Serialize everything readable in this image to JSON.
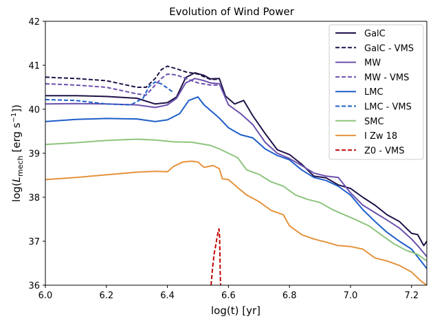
{
  "chart_data": {
    "type": "line",
    "title": "Evolution of Wind Power",
    "xlabel": "log(t) [yr]",
    "ylabel": "log(L_mech [erg s^-1])",
    "ylabel_main": "log(",
    "ylabel_sym": "L",
    "ylabel_sub": "mech",
    "ylabel_unit": " [erg s",
    "ylabel_exp": "−1",
    "ylabel_close": "])",
    "xlim": [
      6.0,
      7.25
    ],
    "ylim": [
      36,
      42
    ],
    "xticks": [
      "6.0",
      "6.2",
      "6.4",
      "6.6",
      "6.8",
      "7.0",
      "7.2"
    ],
    "yticks": [
      "36",
      "37",
      "38",
      "39",
      "40",
      "41",
      "42"
    ],
    "grid": false,
    "legend_position": "top-right",
    "series": [
      {
        "name": "GalC",
        "color": "#1f1147",
        "dash": "solid",
        "points": [
          [
            6.0,
            40.31
          ],
          [
            6.1,
            40.31
          ],
          [
            6.2,
            40.29
          ],
          [
            6.3,
            40.25
          ],
          [
            6.36,
            40.12
          ],
          [
            6.4,
            40.15
          ],
          [
            6.43,
            40.28
          ],
          [
            6.46,
            40.72
          ],
          [
            6.49,
            40.83
          ],
          [
            6.52,
            40.77
          ],
          [
            6.54,
            40.69
          ],
          [
            6.57,
            40.7
          ],
          [
            6.59,
            40.3
          ],
          [
            6.62,
            40.12
          ],
          [
            6.65,
            40.2
          ],
          [
            6.68,
            39.85
          ],
          [
            6.72,
            39.45
          ],
          [
            6.76,
            39.08
          ],
          [
            6.8,
            38.97
          ],
          [
            6.84,
            38.75
          ],
          [
            6.88,
            38.48
          ],
          [
            6.92,
            38.44
          ],
          [
            6.96,
            38.28
          ],
          [
            7.0,
            38.2
          ],
          [
            7.04,
            38.0
          ],
          [
            7.08,
            37.82
          ],
          [
            7.12,
            37.6
          ],
          [
            7.16,
            37.45
          ],
          [
            7.2,
            37.18
          ],
          [
            7.22,
            37.15
          ],
          [
            7.24,
            36.9
          ],
          [
            7.25,
            37.0
          ]
        ]
      },
      {
        "name": "GalC - VMS",
        "color": "#1f1147",
        "dash": "dashed",
        "points": [
          [
            6.0,
            40.73
          ],
          [
            6.1,
            40.7
          ],
          [
            6.2,
            40.65
          ],
          [
            6.3,
            40.5
          ],
          [
            6.33,
            40.5
          ],
          [
            6.36,
            40.7
          ],
          [
            6.38,
            40.9
          ],
          [
            6.4,
            40.98
          ],
          [
            6.43,
            40.92
          ],
          [
            6.46,
            40.85
          ],
          [
            6.5,
            40.8
          ],
          [
            6.54,
            40.68
          ],
          [
            6.57,
            40.68
          ]
        ]
      },
      {
        "name": "MW",
        "color": "#6b4fae",
        "dash": "solid",
        "points": [
          [
            6.0,
            40.12
          ],
          [
            6.1,
            40.13
          ],
          [
            6.2,
            40.12
          ],
          [
            6.3,
            40.1
          ],
          [
            6.36,
            40.04
          ],
          [
            6.4,
            40.1
          ],
          [
            6.43,
            40.25
          ],
          [
            6.46,
            40.6
          ],
          [
            6.49,
            40.7
          ],
          [
            6.52,
            40.65
          ],
          [
            6.54,
            40.6
          ],
          [
            6.57,
            40.58
          ],
          [
            6.6,
            40.1
          ],
          [
            6.64,
            39.9
          ],
          [
            6.68,
            39.65
          ],
          [
            6.72,
            39.25
          ],
          [
            6.76,
            39.0
          ],
          [
            6.8,
            38.88
          ],
          [
            6.84,
            38.72
          ],
          [
            6.88,
            38.55
          ],
          [
            6.92,
            38.48
          ],
          [
            6.96,
            38.45
          ],
          [
            7.0,
            38.1
          ],
          [
            7.04,
            37.82
          ],
          [
            7.08,
            37.65
          ],
          [
            7.12,
            37.48
          ],
          [
            7.16,
            37.3
          ],
          [
            7.2,
            37.05
          ],
          [
            7.22,
            36.9
          ],
          [
            7.25,
            36.65
          ]
        ]
      },
      {
        "name": "MW - VMS",
        "color": "#6b4fae",
        "dash": "dashed",
        "points": [
          [
            6.0,
            40.58
          ],
          [
            6.1,
            40.55
          ],
          [
            6.2,
            40.5
          ],
          [
            6.3,
            40.35
          ],
          [
            6.33,
            40.32
          ],
          [
            6.36,
            40.55
          ],
          [
            6.38,
            40.7
          ],
          [
            6.4,
            40.8
          ],
          [
            6.43,
            40.78
          ],
          [
            6.46,
            40.7
          ],
          [
            6.5,
            40.6
          ],
          [
            6.54,
            40.55
          ],
          [
            6.57,
            40.55
          ]
        ]
      },
      {
        "name": "LMC",
        "color": "#1c5dc9",
        "dash": "solid",
        "points": [
          [
            6.0,
            39.72
          ],
          [
            6.1,
            39.77
          ],
          [
            6.2,
            39.79
          ],
          [
            6.3,
            39.78
          ],
          [
            6.36,
            39.72
          ],
          [
            6.4,
            39.76
          ],
          [
            6.44,
            39.9
          ],
          [
            6.47,
            40.2
          ],
          [
            6.5,
            40.28
          ],
          [
            6.52,
            40.1
          ],
          [
            6.55,
            39.92
          ],
          [
            6.57,
            39.8
          ],
          [
            6.6,
            39.58
          ],
          [
            6.64,
            39.42
          ],
          [
            6.68,
            39.35
          ],
          [
            6.72,
            39.1
          ],
          [
            6.76,
            38.95
          ],
          [
            6.8,
            38.85
          ],
          [
            6.84,
            38.62
          ],
          [
            6.88,
            38.45
          ],
          [
            6.92,
            38.38
          ],
          [
            6.96,
            38.25
          ],
          [
            7.0,
            38.05
          ],
          [
            7.04,
            37.72
          ],
          [
            7.08,
            37.45
          ],
          [
            7.12,
            37.2
          ],
          [
            7.16,
            37.0
          ],
          [
            7.2,
            36.82
          ],
          [
            7.25,
            36.38
          ]
        ]
      },
      {
        "name": "LMC - VMS",
        "color": "#1c5dc9",
        "dash": "dashed",
        "points": [
          [
            6.0,
            40.22
          ],
          [
            6.1,
            40.2
          ],
          [
            6.2,
            40.12
          ],
          [
            6.28,
            40.1
          ],
          [
            6.32,
            40.25
          ],
          [
            6.34,
            40.52
          ],
          [
            6.36,
            40.62
          ],
          [
            6.38,
            40.58
          ],
          [
            6.4,
            40.48
          ],
          [
            6.42,
            40.38
          ]
        ]
      },
      {
        "name": "SMC",
        "color": "#8cc47c",
        "dash": "solid",
        "points": [
          [
            6.0,
            39.2
          ],
          [
            6.1,
            39.24
          ],
          [
            6.2,
            39.29
          ],
          [
            6.3,
            39.32
          ],
          [
            6.36,
            39.3
          ],
          [
            6.42,
            39.26
          ],
          [
            6.48,
            39.25
          ],
          [
            6.54,
            39.18
          ],
          [
            6.57,
            39.1
          ],
          [
            6.6,
            39.0
          ],
          [
            6.63,
            38.9
          ],
          [
            6.66,
            38.62
          ],
          [
            6.7,
            38.52
          ],
          [
            6.74,
            38.35
          ],
          [
            6.78,
            38.25
          ],
          [
            6.82,
            38.05
          ],
          [
            6.86,
            37.95
          ],
          [
            6.9,
            37.88
          ],
          [
            6.94,
            37.72
          ],
          [
            6.98,
            37.6
          ],
          [
            7.02,
            37.48
          ],
          [
            7.06,
            37.35
          ],
          [
            7.1,
            37.15
          ],
          [
            7.14,
            36.95
          ],
          [
            7.18,
            36.8
          ],
          [
            7.22,
            36.7
          ],
          [
            7.25,
            36.55
          ]
        ]
      },
      {
        "name": "I Zw 18",
        "color": "#e5923a",
        "dash": "solid",
        "points": [
          [
            6.0,
            38.4
          ],
          [
            6.1,
            38.45
          ],
          [
            6.2,
            38.51
          ],
          [
            6.3,
            38.57
          ],
          [
            6.36,
            38.59
          ],
          [
            6.4,
            38.58
          ],
          [
            6.42,
            38.7
          ],
          [
            6.45,
            38.8
          ],
          [
            6.48,
            38.82
          ],
          [
            6.5,
            38.8
          ],
          [
            6.52,
            38.68
          ],
          [
            6.55,
            38.72
          ],
          [
            6.57,
            38.65
          ],
          [
            6.58,
            38.42
          ],
          [
            6.6,
            38.4
          ],
          [
            6.63,
            38.22
          ],
          [
            6.66,
            38.05
          ],
          [
            6.7,
            37.9
          ],
          [
            6.74,
            37.7
          ],
          [
            6.78,
            37.6
          ],
          [
            6.8,
            37.35
          ],
          [
            6.84,
            37.15
          ],
          [
            6.88,
            37.05
          ],
          [
            6.92,
            36.98
          ],
          [
            6.96,
            36.9
          ],
          [
            7.0,
            36.88
          ],
          [
            7.04,
            36.82
          ],
          [
            7.08,
            36.62
          ],
          [
            7.12,
            36.55
          ],
          [
            7.16,
            36.45
          ],
          [
            7.2,
            36.3
          ],
          [
            7.23,
            36.1
          ],
          [
            7.25,
            36.0
          ]
        ]
      },
      {
        "name": "Z0 - VMS",
        "color": "#c00000",
        "dash": "dashed",
        "points": [
          [
            6.543,
            36.0
          ],
          [
            6.548,
            36.4
          ],
          [
            6.553,
            36.7
          ],
          [
            6.558,
            36.9
          ],
          [
            6.563,
            37.1
          ],
          [
            6.567,
            37.25
          ],
          [
            6.569,
            37.28
          ],
          [
            6.571,
            37.1
          ],
          [
            6.572,
            36.7
          ],
          [
            6.573,
            36.3
          ],
          [
            6.574,
            36.0
          ]
        ]
      }
    ]
  }
}
